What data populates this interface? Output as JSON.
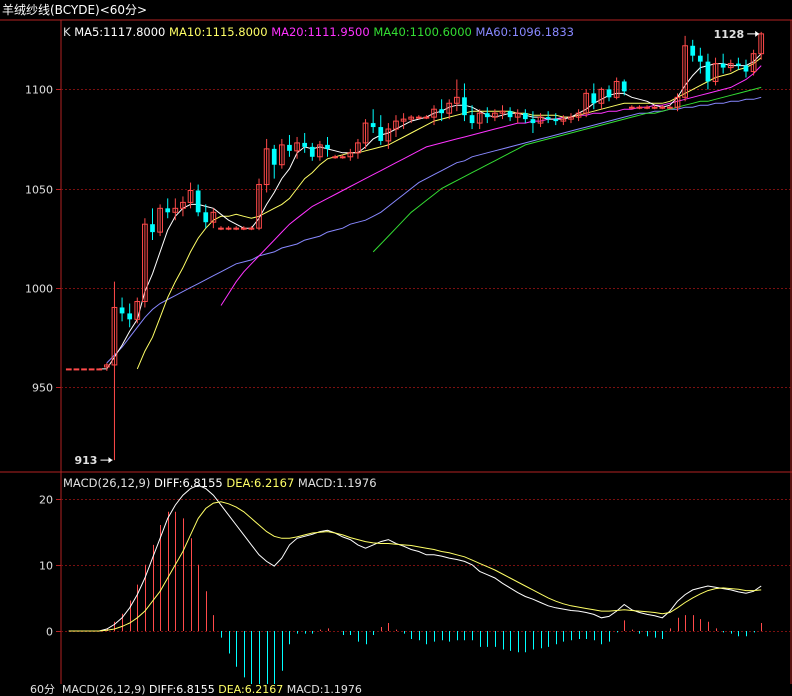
{
  "window": {
    "title": "羊绒纱线(BCYDE)<60分>",
    "period_label": "60分"
  },
  "colors": {
    "up": "#ff4a4a",
    "down": "#00ffff",
    "ma5": "#ffffff",
    "ma10": "#ffff66",
    "ma20": "#ff33ff",
    "ma40": "#33dd33",
    "ma60": "#8888ff",
    "grid": "#7a1010",
    "frame": "#b22222"
  },
  "chart_data": [
    {
      "type": "candlestick",
      "panel": "price",
      "legend_prefix": "K",
      "legend": [
        {
          "label": "MA5:1117.8000",
          "key": "ma5"
        },
        {
          "label": "MA10:1115.8000",
          "key": "ma10"
        },
        {
          "label": "MA20:1111.9500",
          "key": "ma20"
        },
        {
          "label": "MA40:1100.6000",
          "key": "ma40"
        },
        {
          "label": "MA60:1096.1833",
          "key": "ma60"
        }
      ],
      "yticks": [
        "1100",
        "1050",
        "1000",
        "950"
      ],
      "ytick_values": [
        1100,
        1050,
        1000,
        950
      ],
      "ylim": [
        907,
        1135
      ],
      "annotations": [
        {
          "text": "1128",
          "value": 1128,
          "bar": 91
        },
        {
          "text": "913",
          "value": 913,
          "bar": 6
        }
      ],
      "ohlc": [
        [
          959,
          959,
          959,
          959
        ],
        [
          959,
          959,
          959,
          959
        ],
        [
          959,
          959,
          959,
          959
        ],
        [
          959,
          959,
          959,
          959
        ],
        [
          959,
          959,
          959,
          959
        ],
        [
          960,
          962,
          958,
          961
        ],
        [
          961,
          1003,
          913,
          990
        ],
        [
          990,
          995,
          983,
          987
        ],
        [
          987,
          992,
          980,
          984
        ],
        [
          984,
          995,
          982,
          993
        ],
        [
          993,
          1035,
          990,
          1032
        ],
        [
          1032,
          1040,
          1024,
          1028
        ],
        [
          1028,
          1042,
          1026,
          1040
        ],
        [
          1040,
          1045,
          1035,
          1038
        ],
        [
          1038,
          1045,
          1034,
          1040
        ],
        [
          1040,
          1046,
          1036,
          1043
        ],
        [
          1043,
          1053,
          1040,
          1049
        ],
        [
          1049,
          1052,
          1036,
          1038
        ],
        [
          1038,
          1042,
          1030,
          1033
        ],
        [
          1033,
          1040,
          1030,
          1038
        ],
        [
          1030,
          1031,
          1029,
          1030
        ],
        [
          1030,
          1031,
          1029,
          1030
        ],
        [
          1030,
          1031,
          1029,
          1030
        ],
        [
          1030,
          1031,
          1029,
          1030
        ],
        [
          1030,
          1031,
          1029,
          1030
        ],
        [
          1030,
          1055,
          1029,
          1052
        ],
        [
          1052,
          1075,
          1048,
          1070
        ],
        [
          1070,
          1072,
          1055,
          1062
        ],
        [
          1062,
          1075,
          1060,
          1072
        ],
        [
          1072,
          1077,
          1066,
          1069
        ],
        [
          1069,
          1076,
          1065,
          1073
        ],
        [
          1073,
          1078,
          1068,
          1071
        ],
        [
          1071,
          1073,
          1064,
          1066
        ],
        [
          1066,
          1074,
          1064,
          1072
        ],
        [
          1072,
          1076,
          1066,
          1070
        ],
        [
          1066,
          1067,
          1065,
          1066
        ],
        [
          1066,
          1067,
          1065,
          1066
        ],
        [
          1066,
          1070,
          1064,
          1068
        ],
        [
          1068,
          1075,
          1065,
          1073
        ],
        [
          1073,
          1085,
          1070,
          1083
        ],
        [
          1083,
          1090,
          1078,
          1081
        ],
        [
          1081,
          1087,
          1072,
          1074
        ],
        [
          1074,
          1083,
          1070,
          1080
        ],
        [
          1080,
          1087,
          1076,
          1084
        ],
        [
          1084,
          1088,
          1080,
          1085
        ],
        [
          1085,
          1087,
          1083,
          1086
        ],
        [
          1086,
          1087,
          1085,
          1086
        ],
        [
          1086,
          1087,
          1085,
          1086
        ],
        [
          1086,
          1092,
          1082,
          1090
        ],
        [
          1090,
          1095,
          1084,
          1088
        ],
        [
          1088,
          1095,
          1085,
          1093
        ],
        [
          1093,
          1105,
          1089,
          1096
        ],
        [
          1096,
          1103,
          1084,
          1087
        ],
        [
          1087,
          1092,
          1080,
          1083
        ],
        [
          1083,
          1090,
          1080,
          1088
        ],
        [
          1088,
          1091,
          1083,
          1086
        ],
        [
          1086,
          1090,
          1084,
          1088
        ],
        [
          1088,
          1092,
          1085,
          1089
        ],
        [
          1089,
          1091,
          1084,
          1086
        ],
        [
          1086,
          1090,
          1083,
          1088
        ],
        [
          1088,
          1090,
          1083,
          1085
        ],
        [
          1085,
          1089,
          1078,
          1083
        ],
        [
          1083,
          1088,
          1081,
          1086
        ],
        [
          1086,
          1089,
          1083,
          1085
        ],
        [
          1085,
          1088,
          1082,
          1084
        ],
        [
          1084,
          1087,
          1082,
          1085
        ],
        [
          1085,
          1088,
          1083,
          1086
        ],
        [
          1086,
          1090,
          1084,
          1088
        ],
        [
          1088,
          1100,
          1086,
          1098
        ],
        [
          1098,
          1103,
          1090,
          1093
        ],
        [
          1093,
          1101,
          1090,
          1100
        ],
        [
          1100,
          1102,
          1094,
          1096
        ],
        [
          1096,
          1106,
          1095,
          1104
        ],
        [
          1104,
          1105,
          1097,
          1099
        ],
        [
          1091,
          1092,
          1090,
          1091
        ],
        [
          1091,
          1092,
          1090,
          1091
        ],
        [
          1091,
          1092,
          1090,
          1091
        ],
        [
          1091,
          1092,
          1090,
          1091
        ],
        [
          1091,
          1092,
          1090,
          1091
        ],
        [
          1091,
          1092,
          1090,
          1091
        ],
        [
          1091,
          1098,
          1089,
          1096
        ],
        [
          1096,
          1127,
          1094,
          1122
        ],
        [
          1122,
          1125,
          1114,
          1117
        ],
        [
          1117,
          1121,
          1108,
          1114
        ],
        [
          1114,
          1118,
          1100,
          1104
        ],
        [
          1104,
          1116,
          1102,
          1113
        ],
        [
          1113,
          1118,
          1108,
          1111
        ],
        [
          1111,
          1115,
          1109,
          1113
        ],
        [
          1113,
          1116,
          1110,
          1112
        ],
        [
          1112,
          1115,
          1106,
          1109
        ],
        [
          1109,
          1120,
          1107,
          1118
        ],
        [
          1118,
          1129,
          1115,
          1128
        ]
      ],
      "ma5": [
        null,
        null,
        null,
        null,
        959,
        959,
        965,
        971,
        978,
        984,
        998,
        1007,
        1018,
        1029,
        1036,
        1040,
        1042,
        1042,
        1041,
        1040,
        1037,
        1034,
        1032,
        1030,
        1030,
        1035,
        1042,
        1048,
        1055,
        1060,
        1068,
        1071,
        1070,
        1071,
        1070,
        1069,
        1068,
        1068,
        1068,
        1071,
        1075,
        1077,
        1078,
        1080,
        1082,
        1084,
        1085,
        1086,
        1088,
        1089,
        1091,
        1092,
        1092,
        1091,
        1089,
        1087,
        1086,
        1087,
        1088,
        1088,
        1087,
        1086,
        1086,
        1085,
        1085,
        1085,
        1086,
        1088,
        1090,
        1093,
        1095,
        1097,
        1098,
        1098,
        1096,
        1095,
        1094,
        1092,
        1091,
        1092,
        1096,
        1102,
        1107,
        1111,
        1112,
        1113,
        1113,
        1112,
        1112,
        1112,
        1114,
        1118
      ],
      "ma10": [
        null,
        null,
        null,
        null,
        null,
        null,
        null,
        null,
        null,
        959,
        968,
        975,
        985,
        995,
        1003,
        1010,
        1018,
        1025,
        1030,
        1034,
        1036,
        1036,
        1037,
        1036,
        1035,
        1036,
        1038,
        1040,
        1042,
        1045,
        1050,
        1055,
        1058,
        1062,
        1065,
        1066,
        1067,
        1068,
        1068,
        1069,
        1070,
        1071,
        1072,
        1074,
        1076,
        1078,
        1080,
        1082,
        1084,
        1085,
        1086,
        1087,
        1088,
        1089,
        1089,
        1089,
        1089,
        1089,
        1089,
        1088,
        1088,
        1087,
        1087,
        1087,
        1087,
        1086,
        1086,
        1087,
        1088,
        1089,
        1090,
        1091,
        1092,
        1093,
        1093,
        1093,
        1093,
        1093,
        1093,
        1094,
        1096,
        1098,
        1100,
        1102,
        1104,
        1106,
        1107,
        1108,
        1110,
        1111,
        1113,
        1116
      ],
      "ma20": [
        null,
        null,
        null,
        null,
        null,
        null,
        null,
        null,
        null,
        null,
        null,
        null,
        null,
        null,
        null,
        null,
        null,
        null,
        null,
        null,
        991,
        997,
        1003,
        1008,
        1012,
        1016,
        1020,
        1024,
        1028,
        1032,
        1035,
        1038,
        1041,
        1043,
        1045,
        1047,
        1049,
        1051,
        1053,
        1055,
        1057,
        1059,
        1061,
        1063,
        1065,
        1067,
        1069,
        1071,
        1072,
        1073,
        1074,
        1075,
        1076,
        1077,
        1078,
        1079,
        1080,
        1081,
        1082,
        1083,
        1083,
        1084,
        1084,
        1085,
        1085,
        1086,
        1086,
        1087,
        1087,
        1088,
        1088,
        1089,
        1089,
        1090,
        1090,
        1091,
        1091,
        1092,
        1092,
        1093,
        1094,
        1095,
        1096,
        1097,
        1098,
        1099,
        1100,
        1101,
        1103,
        1105,
        1108,
        1112
      ],
      "ma40": [
        null,
        null,
        null,
        null,
        null,
        null,
        null,
        null,
        null,
        null,
        null,
        null,
        null,
        null,
        null,
        null,
        null,
        null,
        null,
        null,
        null,
        null,
        null,
        null,
        null,
        null,
        null,
        null,
        null,
        null,
        null,
        null,
        null,
        null,
        null,
        null,
        null,
        null,
        null,
        null,
        1018,
        1022,
        1026,
        1030,
        1034,
        1038,
        1041,
        1044,
        1047,
        1050,
        1052,
        1054,
        1056,
        1058,
        1060,
        1062,
        1064,
        1066,
        1068,
        1070,
        1072,
        1073,
        1074,
        1075,
        1076,
        1077,
        1078,
        1079,
        1080,
        1081,
        1082,
        1083,
        1084,
        1085,
        1086,
        1087,
        1088,
        1088,
        1089,
        1090,
        1091,
        1092,
        1093,
        1094,
        1094,
        1095,
        1096,
        1097,
        1098,
        1099,
        1100,
        1101
      ],
      "ma60": [
        null,
        null,
        null,
        null,
        null,
        962,
        966,
        970,
        975,
        980,
        985,
        989,
        992,
        994,
        996,
        998,
        1000,
        1002,
        1004,
        1006,
        1008,
        1010,
        1012,
        1013,
        1014,
        1016,
        1017,
        1018,
        1020,
        1021,
        1022,
        1024,
        1025,
        1026,
        1028,
        1029,
        1030,
        1032,
        1033,
        1034,
        1036,
        1038,
        1041,
        1044,
        1047,
        1050,
        1053,
        1055,
        1057,
        1059,
        1061,
        1063,
        1064,
        1066,
        1067,
        1068,
        1069,
        1070,
        1071,
        1072,
        1073,
        1074,
        1075,
        1076,
        1077,
        1078,
        1079,
        1080,
        1081,
        1082,
        1083,
        1084,
        1085,
        1086,
        1087,
        1088,
        1088,
        1089,
        1089,
        1090,
        1090,
        1091,
        1091,
        1092,
        1092,
        1093,
        1093,
        1094,
        1094,
        1095,
        1095,
        1096
      ]
    },
    {
      "type": "macd",
      "panel": "indicator",
      "legend": [
        {
          "label": "MACD(26,12,9)",
          "key": "plain"
        },
        {
          "label": "DIFF:6.8155",
          "key": "ma5"
        },
        {
          "label": "DEA:6.2167",
          "key": "ma10"
        },
        {
          "label": "MACD:1.1976",
          "key": "plain"
        }
      ],
      "yticks": [
        "20",
        "10",
        "0"
      ],
      "ytick_values": [
        20,
        10,
        0
      ],
      "ylim": [
        -8,
        24
      ],
      "diff": [
        0,
        0,
        0,
        0,
        0,
        0.3,
        1,
        2,
        3.5,
        5.5,
        8,
        11,
        14,
        17,
        19,
        20.5,
        21.5,
        22,
        21.5,
        20.5,
        19,
        17.5,
        16,
        14.5,
        13,
        11.5,
        10.5,
        9.8,
        11,
        13,
        14,
        14.3,
        14.6,
        15,
        15.2,
        14.8,
        14.2,
        13.8,
        13,
        12.5,
        13,
        13.5,
        13.8,
        13.2,
        12.8,
        12.3,
        12,
        11.5,
        11.5,
        11.3,
        11,
        10.8,
        10.5,
        10,
        9,
        8.5,
        8,
        7.2,
        6.5,
        5.8,
        5.2,
        4.8,
        4.3,
        3.8,
        3.5,
        3.3,
        3.1,
        3,
        2.8,
        2.5,
        2,
        2.2,
        3,
        4,
        3.2,
        2.8,
        2.5,
        2.3,
        2,
        3,
        4.5,
        5.5,
        6.2,
        6.5,
        6.8,
        6.6,
        6.4,
        6.2,
        5.9,
        5.7,
        6,
        6.8
      ],
      "dea": [
        0,
        0,
        0,
        0,
        0,
        0.1,
        0.3,
        0.7,
        1.2,
        2,
        3,
        4.5,
        6,
        8,
        10,
        12,
        14.5,
        17,
        18.5,
        19.3,
        19.5,
        19.2,
        18.7,
        18,
        17,
        16,
        15,
        14.3,
        14,
        14,
        14.2,
        14.5,
        14.8,
        14.9,
        15,
        14.8,
        14.5,
        14.1,
        13.8,
        13.5,
        13.3,
        13.2,
        13.2,
        13.1,
        13,
        12.9,
        12.7,
        12.5,
        12.3,
        12,
        11.8,
        11.5,
        11.2,
        10.7,
        10.2,
        9.7,
        9.2,
        8.6,
        8,
        7.4,
        6.8,
        6.2,
        5.6,
        5,
        4.5,
        4.1,
        3.8,
        3.6,
        3.4,
        3.2,
        3,
        3,
        3.1,
        3.2,
        3.1,
        3,
        2.9,
        2.8,
        2.6,
        2.8,
        3.5,
        4.3,
        5,
        5.6,
        6.1,
        6.4,
        6.5,
        6.4,
        6.3,
        6.1,
        6.1,
        6.2
      ]
    }
  ],
  "bottom": {
    "period": "60分",
    "indicator": "MACD(26,12,9)",
    "diff": "DIFF:6.8155",
    "dea": "DEA:6.2167",
    "macd": "MACD:1.1976"
  }
}
